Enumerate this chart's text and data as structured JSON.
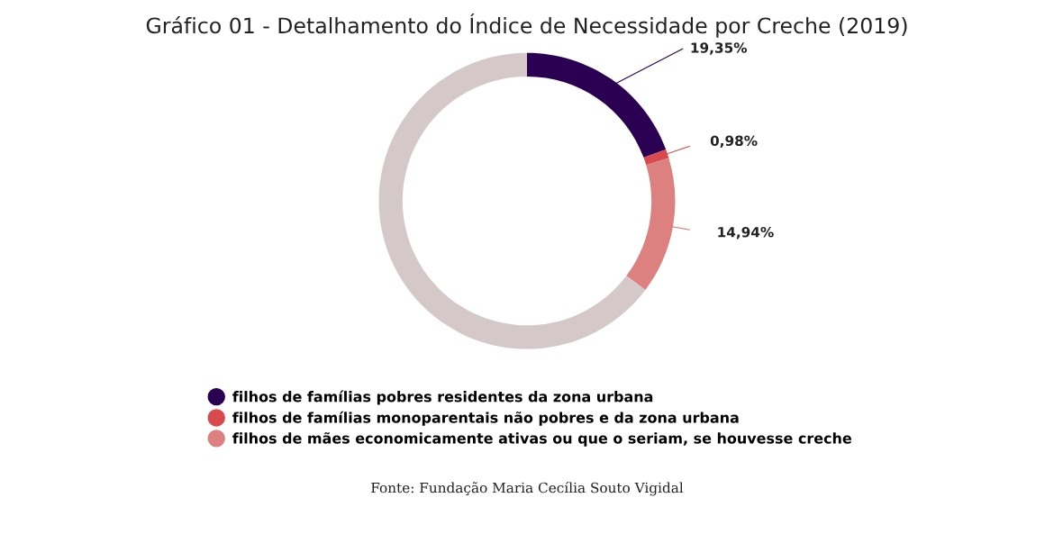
{
  "chart_data": {
    "type": "donut",
    "title": "Gráfico 01 - Detalhamento do Índice de Necessidade por Creche (2019)",
    "categories": [
      "filhos de famílias pobres residentes da zona urbana",
      "filhos de famílias monoparentais não pobres e da zona urbana",
      "filhos de mães economicamente ativas ou que o seriam, se houvesse creche",
      null
    ],
    "values": [
      19.35,
      0.98,
      14.94,
      64.73
    ],
    "colors": [
      "#2b0052",
      "#d94a4f",
      "#dc8080",
      "#d5c8c8"
    ],
    "value_labels": [
      "19,35%",
      "0,98%",
      "14,94%",
      null
    ],
    "legend": "bottom",
    "annotations": [
      "Fonte: Fundação Maria Cecília Souto Vigidal"
    ]
  }
}
